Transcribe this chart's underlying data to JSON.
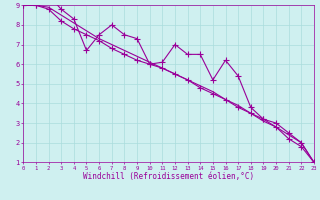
{
  "xlabel": "Windchill (Refroidissement éolien,°C)",
  "background_color": "#cff0f0",
  "line_color": "#990099",
  "grid_color": "#aadddd",
  "x_values": [
    0,
    1,
    2,
    3,
    4,
    5,
    6,
    7,
    8,
    9,
    10,
    11,
    12,
    13,
    14,
    15,
    16,
    17,
    18,
    19,
    20,
    21,
    22,
    23
  ],
  "series1": [
    9.0,
    9.0,
    9.5,
    8.8,
    8.3,
    6.7,
    7.5,
    8.0,
    7.5,
    7.3,
    6.0,
    6.1,
    7.0,
    6.5,
    6.5,
    5.2,
    6.2,
    5.4,
    3.8,
    3.2,
    3.0,
    2.5,
    2.0,
    1.0
  ],
  "series2": [
    9.0,
    9.0,
    8.8,
    8.2,
    7.8,
    7.5,
    7.2,
    6.8,
    6.5,
    6.2,
    6.0,
    5.8,
    5.5,
    5.2,
    4.8,
    4.5,
    4.2,
    3.8,
    3.5,
    3.2,
    2.8,
    2.2,
    1.8,
    1.0
  ],
  "series3": [
    9.0,
    9.0,
    8.9,
    8.5,
    8.1,
    7.7,
    7.3,
    7.0,
    6.7,
    6.4,
    6.1,
    5.8,
    5.5,
    5.2,
    4.9,
    4.6,
    4.2,
    3.9,
    3.5,
    3.1,
    2.8,
    2.4,
    2.0,
    1.0
  ],
  "xlim": [
    0,
    23
  ],
  "ylim": [
    1,
    9
  ],
  "xtick_labels": [
    "0",
    "1",
    "2",
    "3",
    "4",
    "5",
    "6",
    "7",
    "8",
    "9",
    "10",
    "11",
    "12",
    "13",
    "14",
    "15",
    "16",
    "17",
    "18",
    "19",
    "20",
    "21",
    "22",
    "23"
  ],
  "ytick_labels": [
    "1",
    "2",
    "3",
    "4",
    "5",
    "6",
    "7",
    "8",
    "9"
  ],
  "marker": "+",
  "linewidth": 0.8,
  "markersize": 4
}
